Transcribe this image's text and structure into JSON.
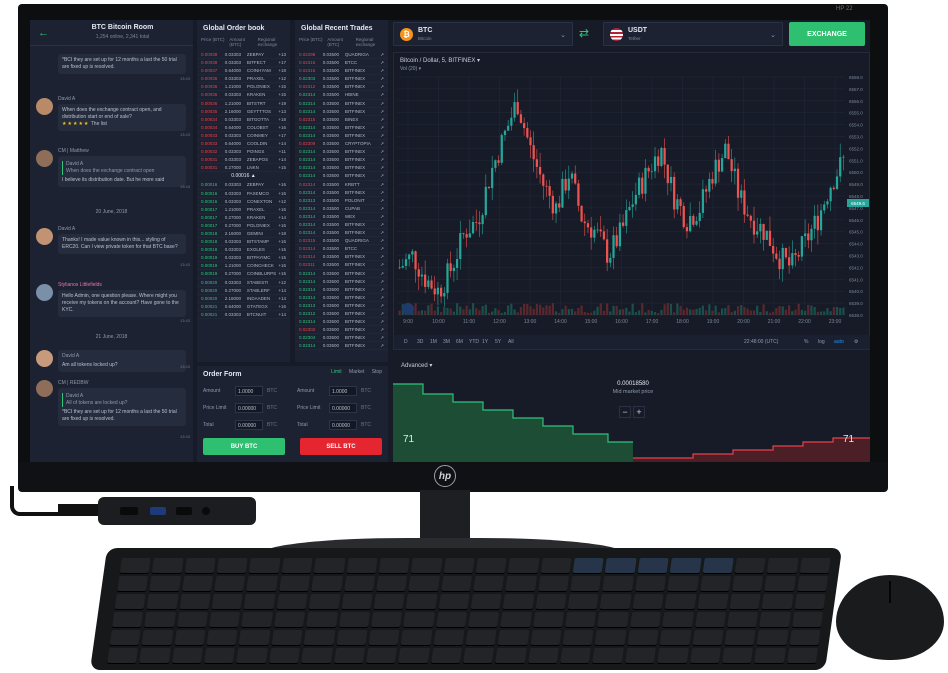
{
  "monitor": {
    "model_label": "HP 22",
    "brand": "hp"
  },
  "chat": {
    "title": "BTC Bitcoin Room",
    "subtitle": "1,254 online, 2,341 total",
    "messages": [
      {
        "name": "",
        "text": "*BCI they are set up for 12 months a last the 50 trial are fixed up is resolved.",
        "time": "13:43"
      },
      {
        "name": "David A",
        "text": "When does the exchange contract open, and distribution start or end of sale?",
        "stars": "★★★★★",
        "extra": "The list",
        "time": "13:43"
      },
      {
        "name": "CM | Matthew",
        "quote": "David A",
        "quote_text": "When does the exchange contract open",
        "text": "I believe its distribution date. But he more said",
        "time": "13:43"
      },
      {
        "name": "David A",
        "text": "Thanks! I made value known in this... styling of ERC20. Can I view private token for that BTC base?",
        "time": "13:43"
      },
      {
        "name": "Stylianos Littlefields",
        "text": "Hello Admin, one question please. Where might you receive my tokens on the account? Have gone to the KYC.",
        "time": "13:43"
      },
      {
        "name": "David A",
        "text": "Am all tokens locked up?",
        "time": "13:43"
      },
      {
        "name": "CM | REDBW",
        "quote": "David A",
        "quote_text": "All of tokens are locked up?",
        "text": "*BCI they are set up for 12 months a last the 50 trial are fixed up is resolved.",
        "time": "13:43"
      }
    ],
    "days": [
      "20 June, 2018",
      "21 June, 2018"
    ]
  },
  "orderbook": {
    "title": "Global Order book",
    "columns": [
      "Price (BTC)",
      "Amount (BTC)",
      "Regional exchange"
    ],
    "spread": "0.00016 ▲",
    "asks": [
      [
        "0.00038",
        "0.03303",
        "ZEBPAY",
        "+13"
      ],
      [
        "0.00038",
        "0.03303",
        "BITFECT",
        "+17"
      ],
      [
        "0.00037",
        "0.64000",
        "COINHYAM",
        "+18"
      ],
      [
        "0.00036",
        "0.03303",
        "PRAXEL",
        "+12"
      ],
      [
        "0.00036",
        "1.21000",
        "POLONIEX",
        "+15"
      ],
      [
        "0.00036",
        "0.03303",
        "KRAKEN",
        "+15"
      ],
      [
        "0.00036",
        "1.21000",
        "BITSTRT",
        "+19"
      ],
      [
        "0.00035",
        "2.16000",
        "GEYTTTOS",
        "+13"
      ],
      [
        "0.00034",
        "0.03303",
        "BITGOTTA",
        "+18"
      ],
      [
        "0.00034",
        "0.64000",
        "COLOBST",
        "+16"
      ],
      [
        "0.00033",
        "0.03303",
        "COINMEY",
        "+17"
      ],
      [
        "0.00033",
        "0.64000",
        "COOLDIN",
        "+14"
      ],
      [
        "0.00032",
        "0.03303",
        "POINGS",
        "+11"
      ],
      [
        "0.00031",
        "0.03303",
        "ZEBAPOS",
        "+14"
      ],
      [
        "0.00031",
        "0.27000",
        "LNKN",
        "+15"
      ]
    ],
    "bids": [
      [
        "0.00016",
        "0.03303",
        "ZEBPAY",
        "+16"
      ],
      [
        "0.00016",
        "0.03303",
        "PAXEMCO",
        "+16"
      ],
      [
        "0.00016",
        "0.03303",
        "CONEXTON",
        "+12"
      ],
      [
        "0.00017",
        "1.21000",
        "PRAXEL",
        "+16"
      ],
      [
        "0.00017",
        "0.27000",
        "KRAKEN",
        "+14"
      ],
      [
        "0.00017",
        "0.27000",
        "POLONIEX",
        "+16"
      ],
      [
        "0.00018",
        "2.16000",
        "GEMINI",
        "+18"
      ],
      [
        "0.00018",
        "0.03303",
        "BITSTAMP",
        "+16"
      ],
      [
        "0.00018",
        "0.03303",
        "EXOLES",
        "+15"
      ],
      [
        "0.00019",
        "0.03303",
        "BITPAYIMC",
        "+15"
      ],
      [
        "0.00019",
        "1.21000",
        "COINCHECK",
        "+16"
      ],
      [
        "0.00019",
        "0.27000",
        "COINBLURPS",
        "+15"
      ],
      [
        "0.00020",
        "0.03303",
        "STABESTI",
        "+12"
      ],
      [
        "0.00020",
        "0.27000",
        "STABLERF",
        "+14"
      ],
      [
        "0.00020",
        "2.16000",
        "INDAADEN",
        "+14"
      ],
      [
        "0.00021",
        "0.64000",
        "GTATEGX",
        "+16"
      ],
      [
        "0.00021",
        "0.03303",
        "BTCNUIT",
        "+14"
      ]
    ]
  },
  "trades": {
    "title": "Global Recent Trades",
    "columns": [
      "Price (BTC)",
      "Amount (BTC)",
      "Regional exchange"
    ],
    "rows": [
      [
        "0.02298",
        "0.03500",
        "QUADRIGA",
        "red"
      ],
      [
        "0.02316",
        "0.03500",
        "BTCC",
        "red"
      ],
      [
        "0.02316",
        "0.03500",
        "BITFINEX",
        "red"
      ],
      [
        "0.02303",
        "0.03500",
        "BITFINEX",
        "green"
      ],
      [
        "0.02312",
        "0.03500",
        "BITFINEX",
        "red"
      ],
      [
        "0.02314",
        "0.03500",
        "HBINE",
        "green"
      ],
      [
        "0.02314",
        "0.03500",
        "BITFINEX",
        "green"
      ],
      [
        "0.02314",
        "0.03500",
        "BITFINEX",
        "green"
      ],
      [
        "0.02315",
        "0.03500",
        "BINEX",
        "red"
      ],
      [
        "0.02314",
        "0.03500",
        "BITFINEX",
        "green"
      ],
      [
        "0.02314",
        "0.03500",
        "BITFINEX",
        "green"
      ],
      [
        "0.02309",
        "0.03500",
        "CRYPTOPIA",
        "red"
      ],
      [
        "0.02314",
        "0.03500",
        "BITFINEX",
        "green"
      ],
      [
        "0.02314",
        "0.03500",
        "BITFINEX",
        "green"
      ],
      [
        "0.02314",
        "0.03500",
        "BITFINEX",
        "green"
      ],
      [
        "0.02314",
        "0.03500",
        "BITFINEX",
        "green"
      ],
      [
        "0.02314",
        "0.03500",
        "KRBTT",
        "red"
      ],
      [
        "0.02314",
        "0.03500",
        "BITFINEX",
        "green"
      ],
      [
        "0.02313",
        "0.03500",
        "POLONIT",
        "green"
      ],
      [
        "0.02314",
        "0.03500",
        "CUPAB",
        "green"
      ],
      [
        "0.02314",
        "0.03500",
        "WEX",
        "green"
      ],
      [
        "0.02314",
        "0.03500",
        "BITFINEX",
        "green"
      ],
      [
        "0.02314",
        "0.03500",
        "BITFINEX",
        "green"
      ],
      [
        "0.02315",
        "0.03500",
        "QUADRIGA",
        "red"
      ],
      [
        "0.02314",
        "0.03500",
        "BTCC",
        "red"
      ],
      [
        "0.02314",
        "0.03500",
        "BITFINEX",
        "red"
      ],
      [
        "0.02311",
        "0.03500",
        "BITFINEX",
        "red"
      ],
      [
        "0.02314",
        "0.03500",
        "BITFINEX",
        "green"
      ],
      [
        "0.02314",
        "0.03500",
        "BITFINEX",
        "green"
      ],
      [
        "0.02314",
        "0.03500",
        "BITFINEX",
        "green"
      ],
      [
        "0.02314",
        "0.03500",
        "BITFINEX",
        "green"
      ],
      [
        "0.02313",
        "0.03500",
        "BITFINEX",
        "green"
      ],
      [
        "0.02312",
        "0.03500",
        "BITFINEX",
        "green"
      ],
      [
        "0.02314",
        "0.03500",
        "BITFINEX",
        "green"
      ],
      [
        "0.02302",
        "0.03500",
        "BITFINEX",
        "red"
      ],
      [
        "0.02304",
        "0.03500",
        "BITFINEX",
        "green"
      ],
      [
        "0.02314",
        "0.03500",
        "BITFINEX",
        "green"
      ]
    ]
  },
  "orderform": {
    "title": "Order Form",
    "tabs": [
      "Limit",
      "Market",
      "Stop"
    ],
    "buy_rows": [
      {
        "label": "Amount",
        "value": "1.0000",
        "unit": "BTC"
      },
      {
        "label": "Price Limit",
        "value": "0.00000",
        "unit": "BTC"
      },
      {
        "label": "Total",
        "value": "0.00000",
        "unit": "BTC"
      }
    ],
    "sell_rows": [
      {
        "label": "Amount",
        "value": "1.0000",
        "unit": "BTC"
      },
      {
        "label": "Price Limit",
        "value": "0.00000",
        "unit": "BTC"
      },
      {
        "label": "Total",
        "value": "0.00000",
        "unit": "BTC"
      }
    ],
    "buy_label": "BUY BTC",
    "sell_label": "SELL BTC"
  },
  "pair": {
    "base": {
      "symbol": "BTC",
      "name": "Bitcoin",
      "icon": "bitcoin-icon",
      "color": "#f7931a"
    },
    "quote": {
      "symbol": "USDT",
      "name": "Tether",
      "icon": "us-flag-icon"
    },
    "exchange_label": "EXCHANGE"
  },
  "chart": {
    "title": "Bitcoin / Dollar, 5, BITFINEX ▾",
    "vol_label": "Vol (20) ▾",
    "price_tag": "6549.6",
    "time_labels": [
      "9:00",
      "10:00",
      "11:00",
      "12:00",
      "13:00",
      "14:00",
      "15:00",
      "16:00",
      "17:00",
      "18:00",
      "19:00",
      "20:00",
      "21:00",
      "22:00",
      "23:00"
    ],
    "price_labels": [
      "6558.0",
      "6557.0",
      "6556.0",
      "6555.0",
      "6554.0",
      "6553.0",
      "6552.0",
      "6551.0",
      "6550.0",
      "6549.0",
      "6548.0",
      "6547.0",
      "6546.0",
      "6545.0",
      "6544.0",
      "6543.0",
      "6542.0",
      "6541.0",
      "6540.0",
      "6539.0",
      "6538.0"
    ],
    "timeframes": [
      "D",
      "3D",
      "1M",
      "3M",
      "6M",
      "YTD",
      "1Y",
      "5Y",
      "All"
    ],
    "clock": "22:48:00 (UTC)",
    "scale_opts": [
      "%",
      "log",
      "auto"
    ]
  },
  "chart_data": {
    "type": "candlestick",
    "title": "Bitcoin / Dollar, 5, BITFINEX",
    "xlabel": "",
    "ylabel": "",
    "x": [
      "9:00",
      "10:00",
      "11:00",
      "12:00",
      "13:00",
      "14:00",
      "15:00",
      "16:00",
      "17:00",
      "18:00",
      "19:00",
      "20:00",
      "21:00",
      "22:00",
      "23:00"
    ],
    "ylim": [
      6538,
      6558
    ],
    "close_trend": [
      6542,
      6543,
      6541,
      6540,
      6542,
      6545,
      6546,
      6550,
      6553,
      6556,
      6552,
      6549,
      6547,
      6550,
      6546,
      6545,
      6543,
      6545,
      6548,
      6550,
      6552,
      6548,
      6546,
      6547,
      6550,
      6552,
      6548,
      6546,
      6545,
      6543,
      6542,
      6544,
      6546,
      6549,
      6551
    ],
    "grid": true
  },
  "depth": {
    "mode": "Advanced ▾",
    "mid_price": "0.00018580",
    "mid_label": "Mid market price",
    "left_count": "71",
    "right_count": "71"
  }
}
